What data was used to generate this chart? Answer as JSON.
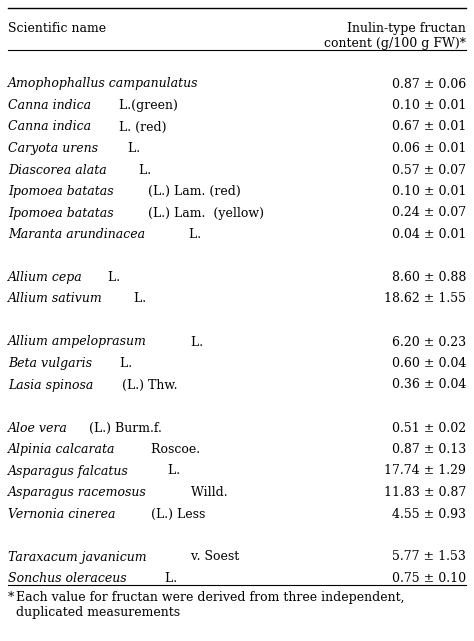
{
  "header_col1": "Scientific name",
  "header_col2": "Inulin-type fructan\ncontent (g/100 g FW)*",
  "rows": [
    {
      "name_italic": "Amophophallus campanulatus",
      "name_rest": "",
      "value": "0.87 ± 0.06",
      "group": 1
    },
    {
      "name_italic": "Canna indica",
      "name_rest": " L.(green)",
      "value": "0.10 ± 0.01",
      "group": 1
    },
    {
      "name_italic": "Canna indica",
      "name_rest": " L. (red)",
      "value": "0.67 ± 0.01",
      "group": 1
    },
    {
      "name_italic": "Caryota urens",
      "name_rest": " L.",
      "value": "0.06 ± 0.01",
      "group": 1
    },
    {
      "name_italic": "Diascorea alata",
      "name_rest": " L.",
      "value": "0.57 ± 0.07",
      "group": 1
    },
    {
      "name_italic": "Ipomoea batatas",
      "name_rest": " (L.) Lam. (red)",
      "value": "0.10 ± 0.01",
      "group": 1
    },
    {
      "name_italic": "Ipomoea batatas",
      "name_rest": " (L.) Lam.  (yellow)",
      "value": "0.24 ± 0.07",
      "group": 1
    },
    {
      "name_italic": "Maranta arundinacea",
      "name_rest": " L.",
      "value": "0.04 ± 0.01",
      "group": 1
    },
    {
      "name_italic": "Allium cepa",
      "name_rest": " L.",
      "value": "8.60 ± 0.88",
      "group": 2
    },
    {
      "name_italic": "Allium sativum",
      "name_rest": " L.",
      "value": "18.62 ± 1.55",
      "group": 2
    },
    {
      "name_italic": "Allium ampeloprasum",
      "name_rest": " L.",
      "value": "6.20 ± 0.23",
      "group": 3
    },
    {
      "name_italic": "Beta vulgaris",
      "name_rest": " L.",
      "value": "0.60 ± 0.04",
      "group": 3
    },
    {
      "name_italic": "Lasia spinosa",
      "name_rest": " (L.) Thw.",
      "value": "0.36 ± 0.04",
      "group": 3
    },
    {
      "name_italic": "Aloe vera",
      "name_rest": " (L.) Burm.f.",
      "value": "0.51 ± 0.02",
      "group": 4
    },
    {
      "name_italic": "Alpinia calcarata",
      "name_rest": " Roscoe.",
      "value": "0.87 ± 0.13",
      "group": 4
    },
    {
      "name_italic": "Asparagus falcatus",
      "name_rest": " L.",
      "value": "17.74 ± 1.29",
      "group": 4
    },
    {
      "name_italic": "Asparagus racemosus",
      "name_rest": " Willd.",
      "value": "11.83 ± 0.87",
      "group": 4
    },
    {
      "name_italic": "Vernonia cinerea",
      "name_rest": " (L.) Less",
      "value": "4.55 ± 0.93",
      "group": 4
    },
    {
      "name_italic": "Taraxacum javanicum",
      "name_rest": " v. Soest",
      "value": "5.77 ± 1.53",
      "group": 5
    },
    {
      "name_italic": "Sonchus oleraceus",
      "name_rest": " L.",
      "value": "0.75 ± 0.10",
      "group": 5
    }
  ],
  "footnote_star": "*",
  "footnote_text": "  Each value for fructan were derived from three independent,\n  duplicated measurements",
  "bg_color": "#ffffff",
  "text_color": "#000000",
  "font_size": 9.0,
  "header_font_size": 9.0,
  "fig_width": 4.74,
  "fig_height": 6.41,
  "dpi": 100
}
